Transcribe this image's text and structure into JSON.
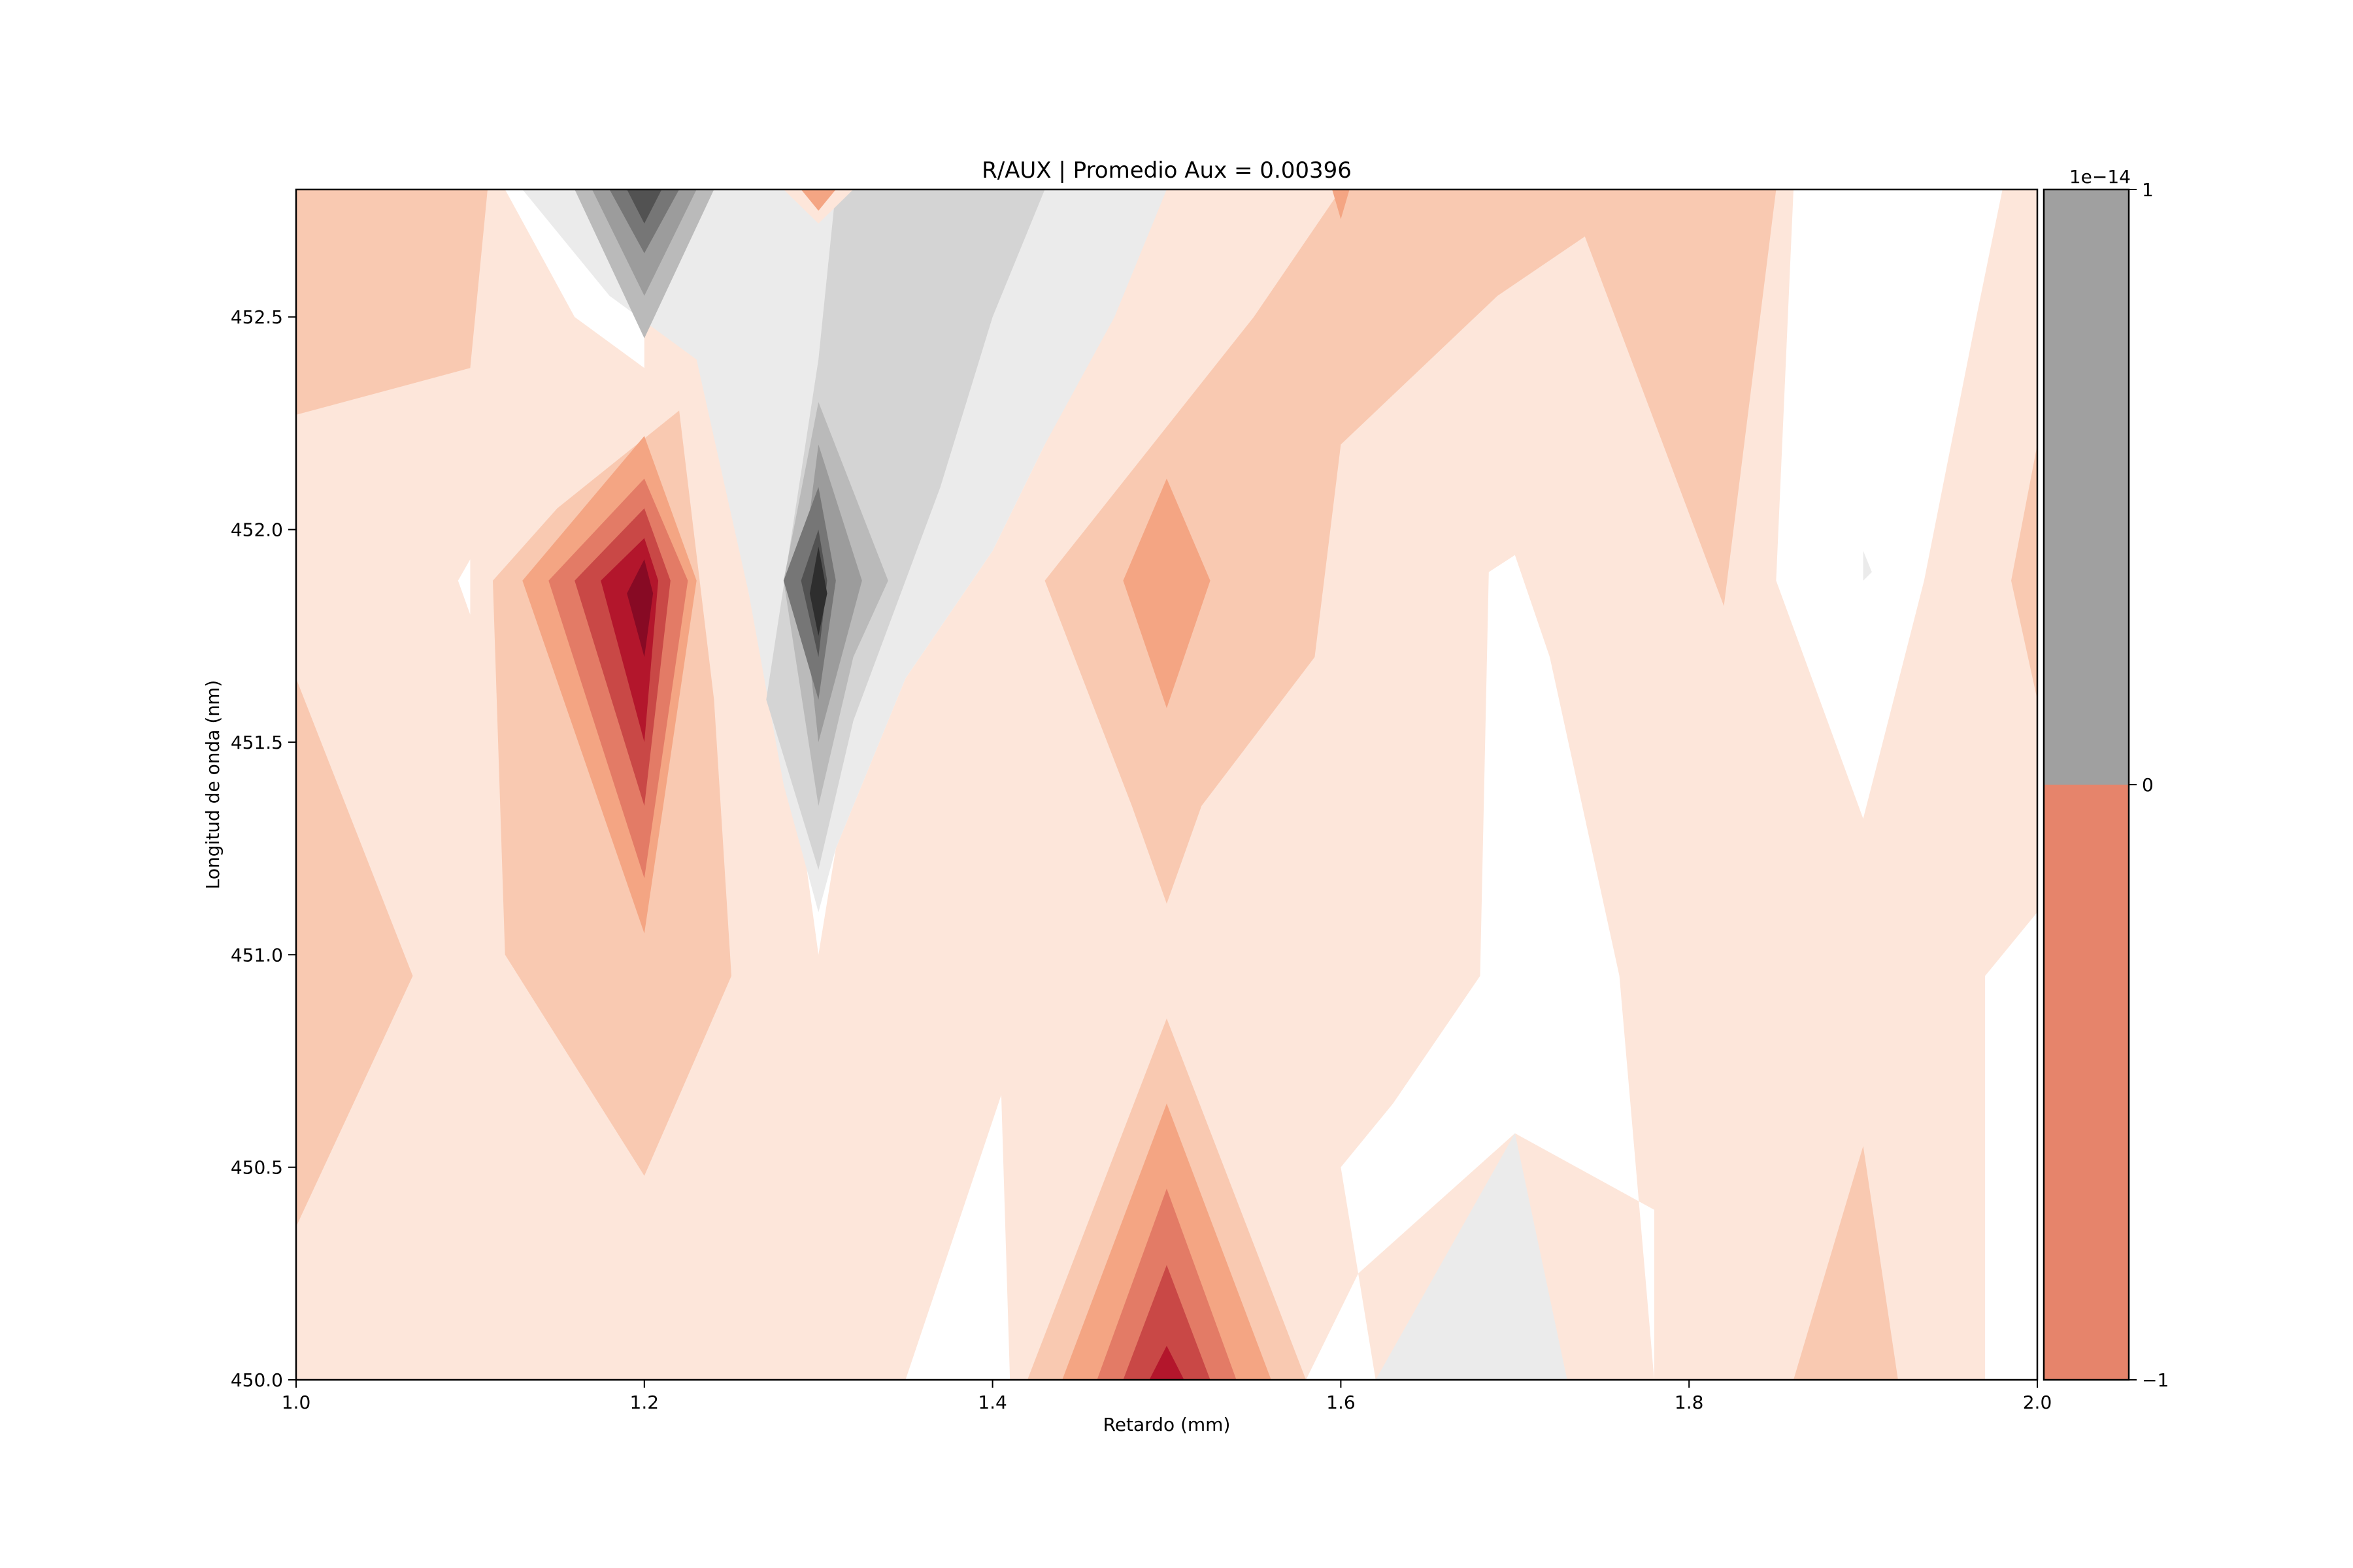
{
  "chart_data": {
    "type": "contour",
    "title": "R/AUX | Promedio Aux = 0.00396",
    "xlabel": "Retardo (mm)",
    "ylabel": "Longitud de onda (nm)",
    "xlim": [
      1.0,
      2.0
    ],
    "ylim": [
      450.0,
      452.8
    ],
    "xticks": [
      "1.0",
      "1.2",
      "1.4",
      "1.6",
      "1.8",
      "2.0"
    ],
    "yticks": [
      "450.0",
      "450.5",
      "451.0",
      "451.5",
      "452.0",
      "452.5"
    ],
    "grid": false,
    "colormap": "RdGy (inverted)",
    "fields": [
      {
        "x": 1.0,
        "y": 450.0,
        "level": "red-1"
      },
      {
        "x": 1.1,
        "y": 452.6,
        "level": "red-2"
      },
      {
        "x": 1.2,
        "y": 451.85,
        "level": "red-7"
      },
      {
        "x": 1.3,
        "y": 451.85,
        "level": "gray-7"
      },
      {
        "x": 1.2,
        "y": 452.75,
        "level": "gray-6"
      },
      {
        "x": 1.5,
        "y": 450.0,
        "level": "red-6"
      },
      {
        "x": 1.5,
        "y": 451.85,
        "level": "red-3"
      },
      {
        "x": 1.7,
        "y": 450.3,
        "level": "gray-1"
      },
      {
        "x": 1.85,
        "y": 452.5,
        "level": "red-2"
      }
    ],
    "colorbar": {
      "exponent_label": "1e−14",
      "ticks": [
        "1",
        "0",
        "−1"
      ],
      "segments": [
        {
          "from": 0,
          "to": 1,
          "color": "#a0a0a0"
        },
        {
          "from": -1,
          "to": 0,
          "color": "#e6846b"
        }
      ]
    },
    "palette": {
      "red-1": "#fde6da",
      "red-2": "#f9c9b1",
      "red-3": "#f4a583",
      "red-4": "#e37b66",
      "red-5": "#c94846",
      "red-6": "#b3162c",
      "red-7": "#870a24",
      "white": "#ffffff",
      "gray-1": "#ebebeb",
      "gray-2": "#d4d4d4",
      "gray-3": "#bababa",
      "gray-4": "#9c9c9c",
      "gray-5": "#767676",
      "gray-6": "#525252",
      "gray-7": "#2e2e2e"
    }
  }
}
